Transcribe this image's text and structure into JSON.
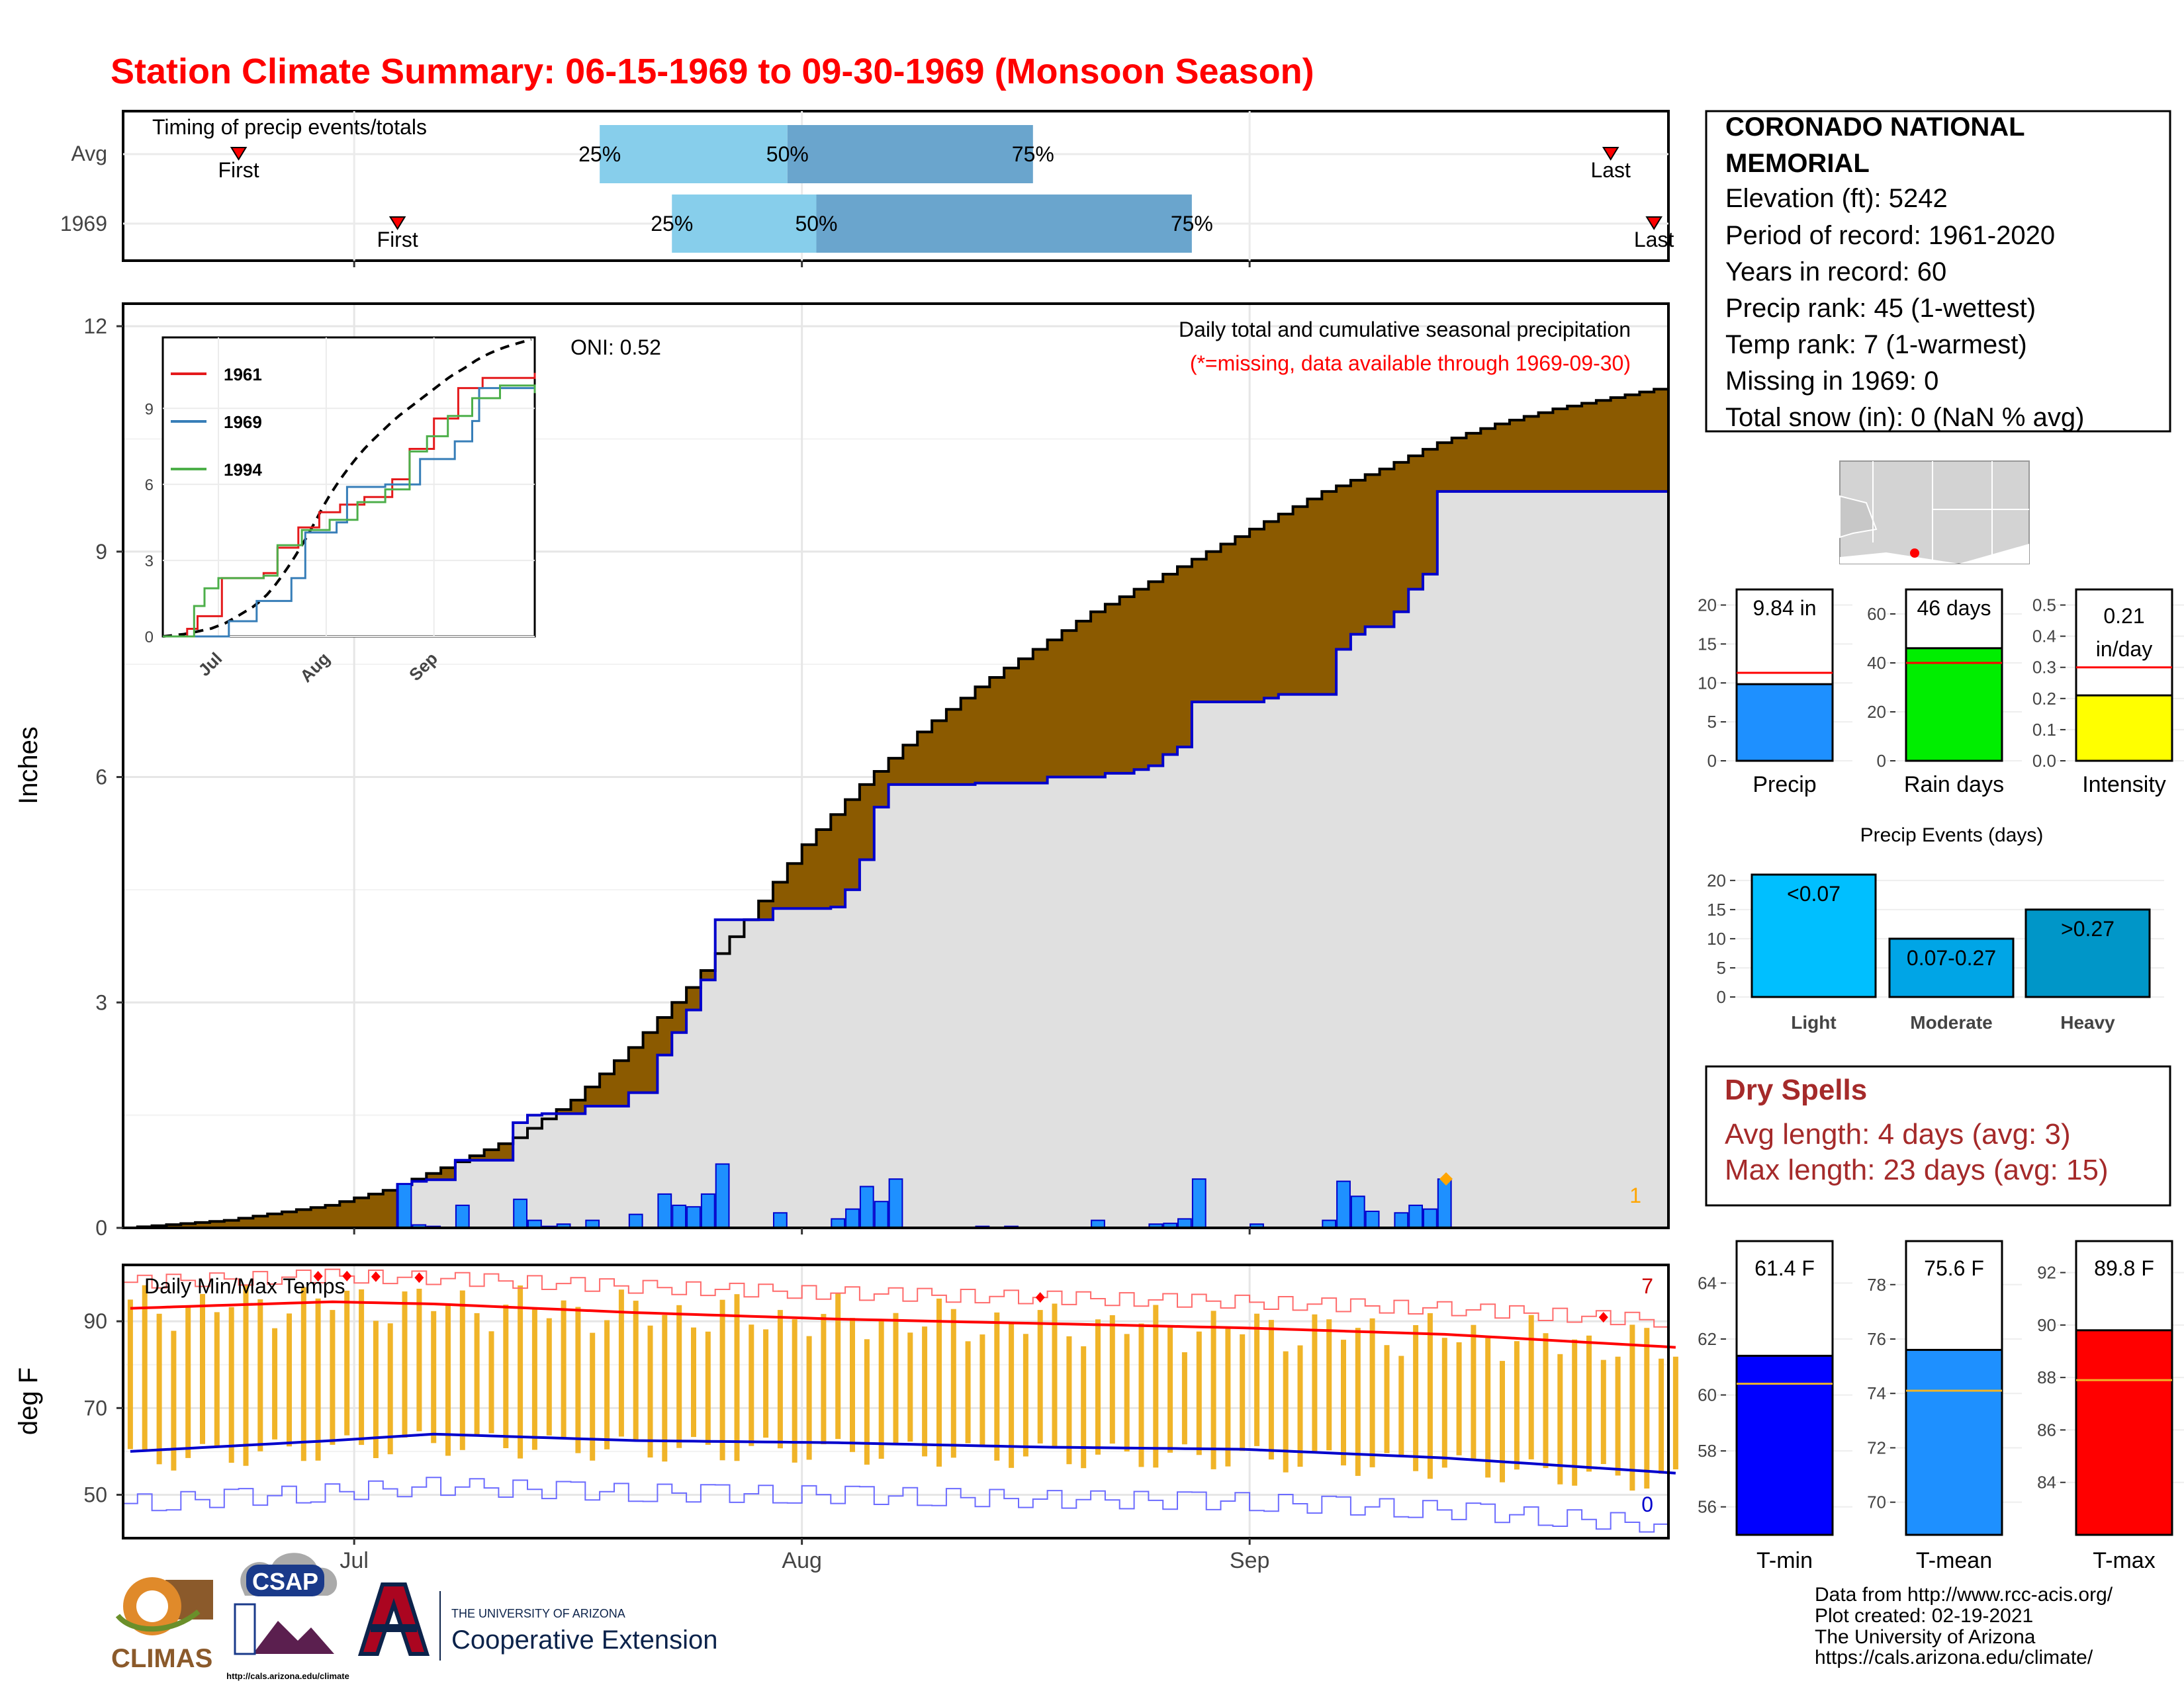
{
  "title": "Station Climate Summary: 06-15-1969 to 09-30-1969 (Monsoon Season)",
  "colors": {
    "title": "#ff0000",
    "cum_avg_fill": "#8b5a00",
    "cum_obs_fill": "#e0e0e0",
    "obs_line": "#0000cc",
    "daily_bar": "#1e90ff",
    "timing_light": "#87ceeb",
    "timing_dark": "#6aa5cd",
    "temp_bar": "#f0b428",
    "tmax_avg": "#ff0000",
    "tmin_avg": "#0000cc",
    "dry_spells": "#a52a2a"
  },
  "timing_panel": {
    "title": "Timing of precip events/totals",
    "rows": [
      {
        "label": "Avg",
        "first": "06-23",
        "p25": "07-18",
        "p50": "07-31",
        "p75": "08-17",
        "last": "09-26"
      },
      {
        "label": "1969",
        "first": "07-04",
        "p25": "07-23",
        "p50": "08-02",
        "p75": "08-28",
        "last": "09-29"
      }
    ],
    "marker_labels": {
      "first": "First",
      "last": "Last",
      "p25": "25%",
      "p50": "50%",
      "p75": "75%"
    }
  },
  "precip_panel": {
    "ylabel": "Inches",
    "yticks": [
      "0",
      "3",
      "6",
      "9",
      "12"
    ],
    "oni": "ONI: 0.52",
    "desc": "Daily total and cumulative seasonal precipitation",
    "missing_note": "(*=missing, data available through 1969-09-30)",
    "corner_count": "1"
  },
  "inset": {
    "yticks": [
      "0",
      "3",
      "6",
      "9"
    ],
    "xticks": [
      "Jul",
      "Aug",
      "Sep"
    ],
    "legend": [
      {
        "name": "1961",
        "color": "#e41a1c"
      },
      {
        "name": "1969",
        "color": "#377eb8"
      },
      {
        "name": "1994",
        "color": "#4daf4a"
      }
    ]
  },
  "temp_panel": {
    "title": "Daily Min/Max Temps",
    "ylabel": "deg F",
    "yticks": [
      "50",
      "70",
      "90"
    ],
    "max_count": "7",
    "min_count": "0"
  },
  "xaxis": {
    "ticks": [
      "Jul",
      "Aug",
      "Sep"
    ]
  },
  "station": {
    "name": "CORONADO NATIONAL MEMORIAL",
    "name_line1": "CORONADO NATIONAL",
    "name_line2": "MEMORIAL",
    "elevation": "Elevation (ft): 5242",
    "period": "Period of record: 1961-2020",
    "years": "Years in record: 60",
    "precip_rank": "Precip rank: 45 (1-wettest)",
    "temp_rank": "Temp rank: 7 (1-warmest)",
    "missing": "Missing in 1969: 0",
    "snow": "Total snow (in): 0 (NaN % avg)"
  },
  "summary_bars": [
    {
      "label": "Precip",
      "value_text": "9.84 in",
      "value": 9.84,
      "avg": 11.3,
      "ymax": 22,
      "yticks": [
        "0",
        "5",
        "10",
        "15",
        "20"
      ],
      "tickvals": [
        0,
        5,
        10,
        15,
        20
      ],
      "color": "#1e90ff"
    },
    {
      "label": "Rain days",
      "value_text": "46 days",
      "value": 46,
      "avg": 40,
      "ymax": 70,
      "yticks": [
        "0",
        "20",
        "40",
        "60"
      ],
      "tickvals": [
        0,
        20,
        40,
        60
      ],
      "color": "#00ee00"
    },
    {
      "label": "Intensity",
      "value_text_1": "0.21",
      "value_text_2": "in/day",
      "value": 0.21,
      "avg": 0.3,
      "ymax": 0.55,
      "yticks": [
        "0.0",
        "0.1",
        "0.2",
        "0.3",
        "0.4",
        "0.5"
      ],
      "tickvals": [
        0,
        0.1,
        0.2,
        0.3,
        0.4,
        0.5
      ],
      "color": "#ffff00"
    }
  ],
  "precip_events": {
    "title": "Precip Events (days)",
    "yticks": [
      "0",
      "5",
      "10",
      "15",
      "20"
    ],
    "bars": [
      {
        "label": "Light",
        "value_text": "<0.07",
        "value": 21,
        "color": "#00bfff"
      },
      {
        "label": "Moderate",
        "value_text": "0.07-0.27",
        "value": 10,
        "color": "#00a5e6"
      },
      {
        "label": "Heavy",
        "value_text": ">0.27",
        "value": 15,
        "color": "#0096c8"
      }
    ]
  },
  "dry_spells": {
    "title": "Dry Spells",
    "avg": "Avg length: 4 days (avg: 3)",
    "max": "Max length: 23 days (avg: 15)"
  },
  "temp_bars": [
    {
      "label": "T-min",
      "value_text": "61.4 F",
      "value": 61.4,
      "avg": 60.4,
      "ymin": 55,
      "ymax": 65.5,
      "yticks": [
        "56",
        "58",
        "60",
        "62",
        "64"
      ],
      "tickvals": [
        56,
        58,
        60,
        62,
        64
      ],
      "color": "#0000ff"
    },
    {
      "label": "T-mean",
      "value_text": "75.6 F",
      "value": 75.6,
      "avg": 74.1,
      "ymin": 68.8,
      "ymax": 79.6,
      "yticks": [
        "70",
        "72",
        "74",
        "76",
        "78"
      ],
      "tickvals": [
        70,
        72,
        74,
        76,
        78
      ],
      "color": "#1e90ff"
    },
    {
      "label": "T-max",
      "value_text": "89.8 F",
      "value": 89.8,
      "avg": 87.9,
      "ymin": 82,
      "ymax": 93.2,
      "yticks": [
        "84",
        "86",
        "88",
        "90",
        "92"
      ],
      "tickvals": [
        84,
        86,
        88,
        90,
        92
      ],
      "color": "#ff0000"
    }
  ],
  "footer": {
    "line1": "Data from http://www.rcc-acis.org/",
    "line2": "Plot created: 02-19-2021",
    "line3": "The University of Arizona",
    "line4": "https://cals.arizona.edu/climate/"
  },
  "logos": {
    "climas": "CLIMAS",
    "csap": "CSAP",
    "csap_url": "http://cals.arizona.edu/climate",
    "ua_small": "THE UNIVERSITY OF ARIZONA",
    "ua_big": "Cooperative Extension"
  },
  "chart_data": {
    "type": "area",
    "title": "Station Climate Summary: 06-15-1969 to 09-30-1969 (Monsoon Season)",
    "ylabel": "Inches",
    "ylim": [
      0,
      12.3
    ],
    "cumulative_avg_anchors": {
      "x": [
        "06-15",
        "06-22",
        "06-29",
        "07-03",
        "07-07",
        "07-12",
        "07-16",
        "07-20",
        "07-24",
        "07-28",
        "08-01",
        "08-05",
        "08-09",
        "08-13",
        "08-17",
        "08-21",
        "08-25",
        "08-29",
        "09-02",
        "09-06",
        "09-10",
        "09-14",
        "09-18",
        "09-22",
        "09-26",
        "09-30"
      ],
      "y": [
        0.0,
        0.1,
        0.3,
        0.5,
        0.8,
        1.2,
        1.7,
        2.4,
        3.2,
        4.1,
        5.1,
        5.9,
        6.6,
        7.2,
        7.7,
        8.2,
        8.6,
        9.0,
        9.4,
        9.8,
        10.1,
        10.45,
        10.7,
        10.9,
        11.05,
        11.2
      ]
    },
    "cumulative_1969_steps": [
      {
        "x": "07-04",
        "y": 0.58
      },
      {
        "x": "07-05",
        "y": 0.62
      },
      {
        "x": "07-06",
        "y": 0.64
      },
      {
        "x": "07-08",
        "y": 0.9
      },
      {
        "x": "07-12",
        "y": 1.4
      },
      {
        "x": "07-13",
        "y": 1.5
      },
      {
        "x": "07-14",
        "y": 1.52
      },
      {
        "x": "07-17",
        "y": 1.62
      },
      {
        "x": "07-20",
        "y": 1.8
      },
      {
        "x": "07-22",
        "y": 2.3
      },
      {
        "x": "07-23",
        "y": 2.6
      },
      {
        "x": "07-24",
        "y": 2.9
      },
      {
        "x": "07-25",
        "y": 3.3
      },
      {
        "x": "07-26",
        "y": 4.1
      },
      {
        "x": "07-30",
        "y": 4.25
      },
      {
        "x": "08-03",
        "y": 4.27
      },
      {
        "x": "08-04",
        "y": 4.5
      },
      {
        "x": "08-05",
        "y": 4.9
      },
      {
        "x": "08-06",
        "y": 5.6
      },
      {
        "x": "08-07",
        "y": 5.9
      },
      {
        "x": "08-13",
        "y": 5.92
      },
      {
        "x": "08-18",
        "y": 6.0
      },
      {
        "x": "08-22",
        "y": 6.05
      },
      {
        "x": "08-24",
        "y": 6.1
      },
      {
        "x": "08-25",
        "y": 6.15
      },
      {
        "x": "08-26",
        "y": 6.3
      },
      {
        "x": "08-27",
        "y": 6.4
      },
      {
        "x": "08-28",
        "y": 7.0
      },
      {
        "x": "09-02",
        "y": 7.05
      },
      {
        "x": "09-03",
        "y": 7.1
      },
      {
        "x": "09-07",
        "y": 7.7
      },
      {
        "x": "09-08",
        "y": 7.9
      },
      {
        "x": "09-09",
        "y": 8.0
      },
      {
        "x": "09-11",
        "y": 8.2
      },
      {
        "x": "09-12",
        "y": 8.5
      },
      {
        "x": "09-13",
        "y": 8.7
      },
      {
        "x": "09-14",
        "y": 9.8
      },
      {
        "x": "09-30",
        "y": 9.84
      }
    ],
    "daily_precip_1969": [
      {
        "x": "07-04",
        "y": 0.58
      },
      {
        "x": "07-05",
        "y": 0.04
      },
      {
        "x": "07-06",
        "y": 0.02
      },
      {
        "x": "07-08",
        "y": 0.3
      },
      {
        "x": "07-12",
        "y": 0.38
      },
      {
        "x": "07-13",
        "y": 0.1
      },
      {
        "x": "07-14",
        "y": 0.02
      },
      {
        "x": "07-15",
        "y": 0.05
      },
      {
        "x": "07-17",
        "y": 0.1
      },
      {
        "x": "07-20",
        "y": 0.18
      },
      {
        "x": "07-22",
        "y": 0.45
      },
      {
        "x": "07-23",
        "y": 0.3
      },
      {
        "x": "07-24",
        "y": 0.28
      },
      {
        "x": "07-25",
        "y": 0.45
      },
      {
        "x": "07-26",
        "y": 0.85
      },
      {
        "x": "07-30",
        "y": 0.2
      },
      {
        "x": "08-03",
        "y": 0.12
      },
      {
        "x": "08-04",
        "y": 0.25
      },
      {
        "x": "08-05",
        "y": 0.55
      },
      {
        "x": "08-06",
        "y": 0.35
      },
      {
        "x": "08-07",
        "y": 0.65
      },
      {
        "x": "08-13",
        "y": 0.02
      },
      {
        "x": "08-15",
        "y": 0.02
      },
      {
        "x": "08-21",
        "y": 0.1
      },
      {
        "x": "08-25",
        "y": 0.05
      },
      {
        "x": "08-26",
        "y": 0.06
      },
      {
        "x": "08-27",
        "y": 0.12
      },
      {
        "x": "08-28",
        "y": 0.65
      },
      {
        "x": "09-01",
        "y": 0.05
      },
      {
        "x": "09-06",
        "y": 0.1
      },
      {
        "x": "09-07",
        "y": 0.62
      },
      {
        "x": "09-08",
        "y": 0.42
      },
      {
        "x": "09-09",
        "y": 0.22
      },
      {
        "x": "09-11",
        "y": 0.2
      },
      {
        "x": "09-12",
        "y": 0.3
      },
      {
        "x": "09-13",
        "y": 0.25
      },
      {
        "x": "09-14",
        "y": 0.65
      }
    ],
    "temperature": {
      "ylabel": "deg F",
      "avg_tmax_anchors": {
        "x": [
          "06-15",
          "06-29",
          "07-06",
          "07-20",
          "08-03",
          "08-17",
          "08-31",
          "09-14",
          "09-30"
        ],
        "y": [
          93,
          94.5,
          94,
          92,
          90.5,
          89.5,
          88.5,
          87,
          84
        ]
      },
      "avg_tmin_anchors": {
        "x": [
          "06-15",
          "06-29",
          "07-06",
          "07-20",
          "08-03",
          "08-17",
          "08-31",
          "09-14",
          "09-30"
        ],
        "y": [
          60,
          62.5,
          64,
          62.5,
          62,
          61,
          60.5,
          58.5,
          55
        ]
      }
    }
  }
}
